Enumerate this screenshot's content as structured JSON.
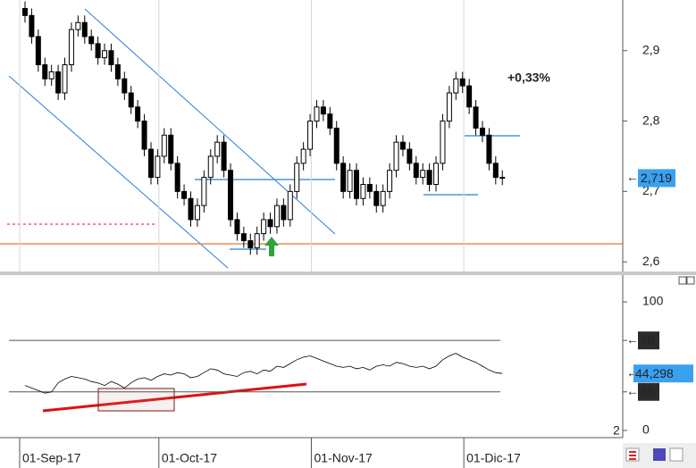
{
  "chart_data": [
    {
      "type": "candlestick",
      "categories": [
        "01-Sep-17",
        null,
        null,
        null,
        null,
        null,
        null,
        null,
        null,
        null,
        null,
        null,
        null,
        null,
        null,
        null,
        null,
        null,
        null,
        null,
        null,
        "01-Oct-17",
        null,
        null,
        null,
        null,
        null,
        null,
        null,
        null,
        null,
        null,
        null,
        null,
        null,
        null,
        null,
        null,
        null,
        null,
        null,
        null,
        null,
        null,
        "01-Nov-17",
        null,
        null,
        null,
        null,
        null,
        null,
        null,
        null,
        null,
        null,
        null,
        null,
        null,
        null,
        null,
        null,
        null,
        null,
        null,
        null,
        null,
        null,
        "01-Dic-17",
        null,
        null,
        null,
        null,
        null
      ],
      "open": [
        2.96,
        2.95,
        2.92,
        2.88,
        2.86,
        2.87,
        2.84,
        2.88,
        2.93,
        2.94,
        2.92,
        2.91,
        2.89,
        2.9,
        2.88,
        2.86,
        2.84,
        2.82,
        2.8,
        2.76,
        2.72,
        2.75,
        2.78,
        2.74,
        2.7,
        2.69,
        2.66,
        2.68,
        2.72,
        2.75,
        2.77,
        2.73,
        2.66,
        2.64,
        2.63,
        2.62,
        2.64,
        2.66,
        2.65,
        2.68,
        2.66,
        2.7,
        2.74,
        2.76,
        2.8,
        2.82,
        2.81,
        2.79,
        2.74,
        2.7,
        2.73,
        2.69,
        2.71,
        2.7,
        2.68,
        2.7,
        2.73,
        2.77,
        2.76,
        2.74,
        2.72,
        2.73,
        2.71,
        2.74,
        2.8,
        2.84,
        2.86,
        2.85,
        2.82,
        2.79,
        2.78,
        2.74,
        2.72
      ],
      "high": [
        2.97,
        2.96,
        2.93,
        2.89,
        2.88,
        2.88,
        2.89,
        2.94,
        2.95,
        2.95,
        2.93,
        2.92,
        2.91,
        2.91,
        2.89,
        2.87,
        2.85,
        2.83,
        2.81,
        2.77,
        2.76,
        2.79,
        2.79,
        2.75,
        2.71,
        2.7,
        2.69,
        2.73,
        2.76,
        2.78,
        2.78,
        2.74,
        2.67,
        2.65,
        2.64,
        2.65,
        2.67,
        2.67,
        2.69,
        2.69,
        2.71,
        2.75,
        2.77,
        2.81,
        2.83,
        2.83,
        2.82,
        2.8,
        2.75,
        2.74,
        2.74,
        2.72,
        2.72,
        2.71,
        2.71,
        2.74,
        2.78,
        2.78,
        2.77,
        2.75,
        2.74,
        2.74,
        2.75,
        2.81,
        2.85,
        2.87,
        2.87,
        2.86,
        2.83,
        2.8,
        2.79,
        2.75,
        2.73
      ],
      "low": [
        2.94,
        2.91,
        2.87,
        2.85,
        2.85,
        2.83,
        2.83,
        2.87,
        2.92,
        2.91,
        2.9,
        2.88,
        2.88,
        2.87,
        2.85,
        2.83,
        2.81,
        2.79,
        2.75,
        2.71,
        2.71,
        2.74,
        2.73,
        2.69,
        2.68,
        2.65,
        2.65,
        2.67,
        2.71,
        2.74,
        2.72,
        2.65,
        2.63,
        2.62,
        2.61,
        2.61,
        2.63,
        2.64,
        2.64,
        2.65,
        2.65,
        2.69,
        2.73,
        2.75,
        2.79,
        2.8,
        2.78,
        2.73,
        2.69,
        2.69,
        2.68,
        2.68,
        2.69,
        2.67,
        2.67,
        2.69,
        2.72,
        2.75,
        2.73,
        2.71,
        2.71,
        2.7,
        2.7,
        2.73,
        2.79,
        2.83,
        2.84,
        2.81,
        2.78,
        2.77,
        2.73,
        2.71,
        2.709
      ],
      "close": [
        2.95,
        2.92,
        2.88,
        2.86,
        2.87,
        2.84,
        2.88,
        2.93,
        2.94,
        2.92,
        2.91,
        2.89,
        2.9,
        2.88,
        2.86,
        2.84,
        2.82,
        2.8,
        2.76,
        2.72,
        2.75,
        2.78,
        2.74,
        2.7,
        2.69,
        2.66,
        2.68,
        2.72,
        2.75,
        2.77,
        2.73,
        2.66,
        2.64,
        2.63,
        2.62,
        2.64,
        2.66,
        2.65,
        2.68,
        2.66,
        2.7,
        2.74,
        2.76,
        2.8,
        2.82,
        2.81,
        2.79,
        2.74,
        2.7,
        2.73,
        2.69,
        2.71,
        2.7,
        2.68,
        2.7,
        2.73,
        2.77,
        2.76,
        2.74,
        2.72,
        2.73,
        2.71,
        2.74,
        2.8,
        2.84,
        2.86,
        2.85,
        2.82,
        2.79,
        2.78,
        2.74,
        2.72,
        2.719
      ],
      "up_color": "#ffffff",
      "down_color": "#000000",
      "ylim": [
        2.585,
        2.972
      ],
      "yticks": [
        {
          "value": 2.6,
          "label": "2,6"
        },
        {
          "value": 2.7,
          "label": "2,7"
        },
        {
          "value": 2.8,
          "label": "2,8"
        },
        {
          "value": 2.9,
          "label": "2,9"
        }
      ],
      "last_label": "2,719",
      "annotation": {
        "text": "+0,33%",
        "color": "#1a1adf"
      }
    },
    {
      "type": "line",
      "panel_label": "2",
      "values": [
        35,
        33,
        31,
        29,
        30,
        37,
        40,
        42,
        41,
        40,
        38,
        37,
        35,
        38,
        36,
        33,
        37,
        40,
        41,
        39,
        42,
        44,
        43,
        45,
        44,
        41,
        42,
        45,
        48,
        47,
        44,
        43,
        42,
        45,
        46,
        44,
        47,
        46,
        50,
        49,
        52,
        55,
        57,
        58,
        56,
        54,
        52,
        50,
        49,
        50,
        48,
        49,
        47,
        50,
        51,
        50,
        53,
        52,
        50,
        49,
        50,
        48,
        50,
        55,
        58,
        60,
        57,
        55,
        53,
        50,
        47,
        45,
        44.298
      ],
      "color": "#000000",
      "ylim": [
        -5.6,
        113.9
      ],
      "yticks": [
        0,
        30,
        70,
        100
      ],
      "last_label": "44,298"
    }
  ]
}
